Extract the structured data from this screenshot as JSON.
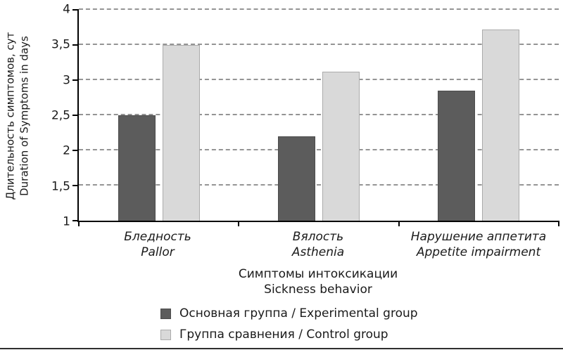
{
  "chart_data": {
    "type": "bar",
    "title": "",
    "categories": [
      {
        "ru": "Бледность",
        "en": "Pallor"
      },
      {
        "ru": "Вялость",
        "en": "Asthenia"
      },
      {
        "ru": "Нарушение аппетита",
        "en": "Appetite impairment"
      }
    ],
    "series": [
      {
        "name": "Основная группа / Experimental group",
        "color": "#5c5c5c",
        "border": "#4c4c4c",
        "values": [
          2.5,
          2.2,
          2.85
        ]
      },
      {
        "name": "Группа сравнения / Control group",
        "color": "#d9d9d9",
        "border": "#ababab",
        "values": [
          3.5,
          3.12,
          3.72
        ]
      }
    ],
    "ylabel_ru": "Длительность симптомов, сут",
    "ylabel_en": "Duration of Symptoms in days",
    "xlabel_ru": "Симптомы интоксикации",
    "xlabel_en": "Sickness behavior",
    "ylim": [
      1,
      4
    ],
    "ytick_values": [
      1,
      1.5,
      2,
      2.5,
      3,
      3.5,
      4
    ],
    "yticks": [
      "1",
      "1,5",
      "2",
      "2,5",
      "3",
      "3,5",
      "4"
    ],
    "grid": "dashed-horizontal",
    "legend_position": "bottom-left"
  }
}
